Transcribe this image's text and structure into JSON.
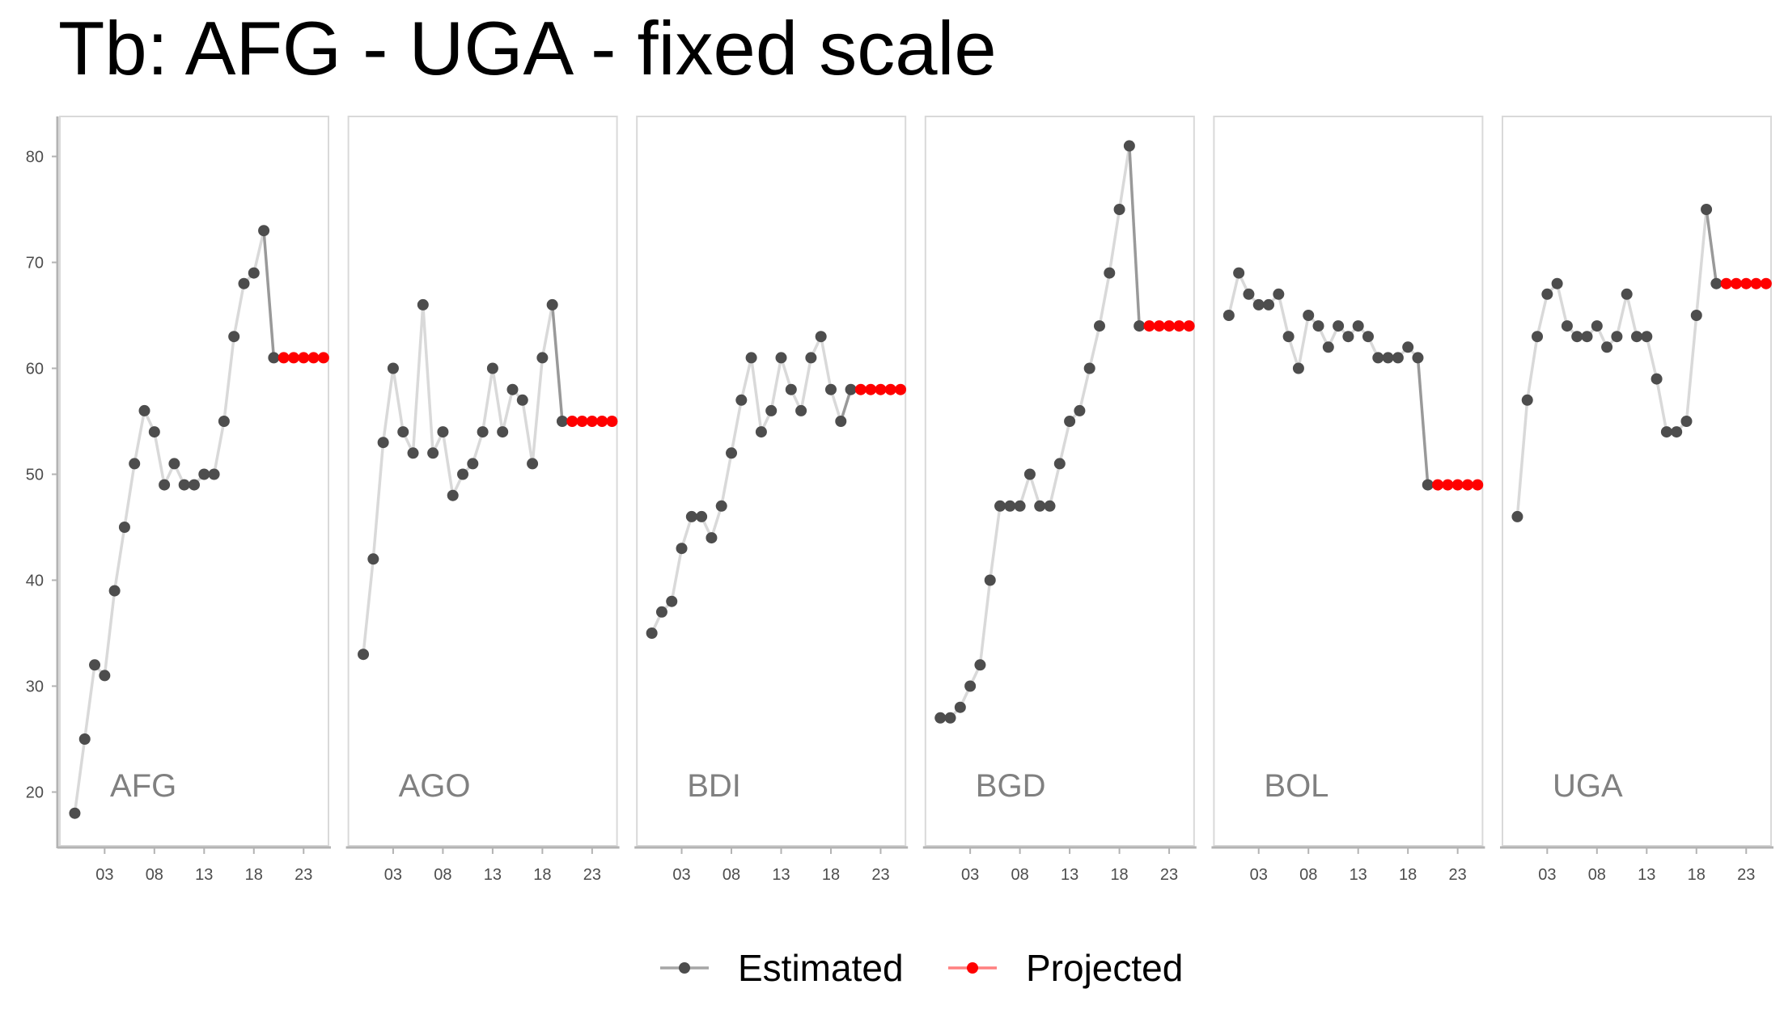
{
  "chart_data": {
    "type": "line",
    "title": "Tb: AFG - UGA - fixed scale",
    "xlabel": "",
    "ylabel": "",
    "y_ticks": [
      20,
      30,
      40,
      50,
      60,
      70,
      80
    ],
    "ylim": [
      15,
      85
    ],
    "x_ticks": [
      3,
      8,
      13,
      18,
      23
    ],
    "x_tick_labels": [
      "03",
      "08",
      "13",
      "18",
      "23"
    ],
    "xlim": [
      -1.5,
      25.5
    ],
    "grid": false,
    "legend": {
      "position": "bottom",
      "entries": [
        {
          "name": "Estimated",
          "color": "#4d4d4d"
        },
        {
          "name": "Projected",
          "color": "#ff0000"
        }
      ]
    },
    "colors": {
      "estimated_point": "#4d4d4d",
      "estimated_line": "#d9d9d9",
      "connector_line": "#999999",
      "projected": "#ff0000",
      "panel_border": "#d9d9d9",
      "axis": "#b3b3b3"
    },
    "estimated_x": [
      0,
      1,
      2,
      3,
      4,
      5,
      6,
      7,
      8,
      9,
      10,
      11,
      12,
      13,
      14,
      15,
      16,
      17,
      18,
      19,
      20
    ],
    "projected_x": [
      21,
      22,
      23,
      24,
      25
    ],
    "panels": [
      {
        "label": "AFG",
        "estimated": [
          18,
          25,
          32,
          31,
          39,
          45,
          51,
          56,
          54,
          49,
          51,
          49,
          49,
          50,
          50,
          55,
          63,
          68,
          69,
          73,
          61
        ],
        "projected": [
          61,
          61,
          61,
          61,
          61
        ]
      },
      {
        "label": "AGO",
        "estimated": [
          33,
          42,
          53,
          60,
          54,
          52,
          66,
          52,
          54,
          48,
          50,
          51,
          54,
          60,
          54,
          58,
          57,
          51,
          61,
          66,
          55
        ],
        "projected": [
          55,
          55,
          55,
          55,
          55
        ]
      },
      {
        "label": "BDI",
        "estimated": [
          35,
          37,
          38,
          43,
          46,
          46,
          44,
          47,
          52,
          57,
          61,
          54,
          56,
          61,
          58,
          56,
          61,
          63,
          58,
          55,
          58
        ],
        "projected": [
          58,
          58,
          58,
          58,
          58
        ]
      },
      {
        "label": "BGD",
        "estimated": [
          27,
          27,
          28,
          30,
          32,
          40,
          47,
          47,
          47,
          50,
          47,
          47,
          51,
          55,
          56,
          60,
          64,
          69,
          75,
          81,
          64
        ],
        "projected": [
          64,
          64,
          64,
          64,
          64
        ]
      },
      {
        "label": "BOL",
        "estimated": [
          65,
          69,
          67,
          66,
          66,
          67,
          63,
          60,
          65,
          64,
          62,
          64,
          63,
          64,
          63,
          61,
          61,
          61,
          62,
          61,
          49
        ],
        "projected": [
          49,
          49,
          49,
          49,
          49
        ]
      },
      {
        "label": "UGA",
        "estimated": [
          46,
          57,
          63,
          67,
          68,
          64,
          63,
          63,
          64,
          62,
          63,
          67,
          63,
          63,
          59,
          54,
          54,
          55,
          65,
          75,
          68
        ],
        "projected": [
          68,
          68,
          68,
          68,
          68
        ]
      }
    ]
  }
}
